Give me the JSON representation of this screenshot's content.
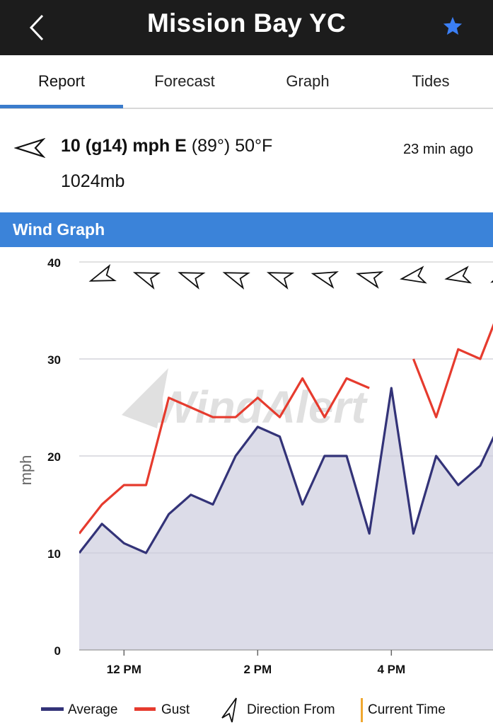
{
  "header": {
    "title": "Mission Bay YC",
    "back_icon": "chevron-left-icon",
    "favorite_icon": "star-icon",
    "favorite_color": "#3b7ff5"
  },
  "tabs": [
    {
      "label": "Report",
      "active": true
    },
    {
      "label": "Forecast",
      "active": false
    },
    {
      "label": "Graph",
      "active": false
    },
    {
      "label": "Tides",
      "active": false
    }
  ],
  "report": {
    "direction_icon": "wind-direction-arrow-icon",
    "speed": "10 (g14) mph E",
    "degrees": "(89°)",
    "temperature": "50°F",
    "time_ago": "23 min ago",
    "pressure": "1024mb"
  },
  "section": {
    "title": "Wind Graph"
  },
  "chart_data": {
    "type": "area",
    "ylabel": "mph",
    "ylim": [
      0,
      40
    ],
    "yticks": [
      "0",
      "10",
      "20",
      "30",
      "40"
    ],
    "x_ticks": [
      {
        "label": "12 PM",
        "hour": 12
      },
      {
        "label": "2 PM",
        "hour": 14
      },
      {
        "label": "4 PM",
        "hour": 16
      }
    ],
    "x": [
      11.33,
      11.67,
      12.0,
      12.33,
      12.67,
      13.0,
      13.33,
      13.67,
      14.0,
      14.33,
      14.67,
      15.0,
      15.33,
      15.67,
      16.0,
      16.33,
      16.67,
      17.0,
      17.33,
      17.67
    ],
    "series": [
      {
        "name": "Average",
        "color": "#333378",
        "fill": "#dcdce8",
        "values": [
          10,
          13,
          11,
          10,
          14,
          16,
          15,
          20,
          23,
          22,
          15,
          20,
          20,
          12,
          27,
          12,
          20,
          17,
          19,
          24
        ]
      },
      {
        "name": "Gust",
        "color": "#e63b2e",
        "values": [
          12,
          15,
          17,
          17,
          26,
          25,
          24,
          24,
          26,
          24,
          28,
          24,
          28,
          27,
          null,
          30,
          24,
          31,
          30,
          36
        ]
      }
    ],
    "direction_degrees": [
      70,
      110,
      110,
      110,
      110,
      105,
      105,
      80,
      80,
      65
    ],
    "direction_hours": [
      11.67,
      12.33,
      13.0,
      13.67,
      14.33,
      15.0,
      15.67,
      16.33,
      17.0,
      17.67
    ],
    "watermark": "WindAlert",
    "legend": [
      {
        "label": "Average",
        "icon": "average-line-icon",
        "color": "#333378"
      },
      {
        "label": "Gust",
        "icon": "gust-line-icon",
        "color": "#e63b2e"
      },
      {
        "label": "Direction From",
        "icon": "direction-arrow-icon",
        "color": "#111111"
      },
      {
        "label": "Current Time",
        "icon": "current-time-icon",
        "color": "#f0a830"
      }
    ]
  }
}
